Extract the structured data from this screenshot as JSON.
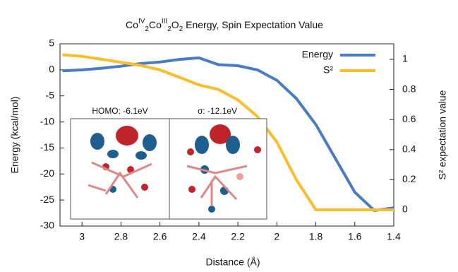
{
  "chart_data": {
    "type": "line",
    "title": [
      "Co",
      "IV",
      "2",
      "Co",
      "III",
      "2",
      "O",
      "2",
      " Energy, Spin Expectation Value"
    ],
    "x_label": "Distance (Å)",
    "y_label": "Energy (kcal/mol)",
    "y2_label": "S² expectation value",
    "x": [
      3.1,
      3.0,
      2.9,
      2.8,
      2.7,
      2.6,
      2.5,
      2.4,
      2.3,
      2.2,
      2.1,
      2.0,
      1.9,
      1.8,
      1.7,
      1.6,
      1.5,
      1.4
    ],
    "series": [
      {
        "name": "Energy",
        "color": "#4a7cc4",
        "values": [
          -0.2,
          0,
          0.3,
          0.7,
          1.2,
          1.5,
          2.0,
          2.3,
          1.0,
          0.8,
          0,
          -2,
          -5.5,
          -10.5,
          -17,
          -23.5,
          -27,
          -26.5
        ]
      },
      {
        "name": "S²",
        "color": "#fbbd2c",
        "axis": "y2",
        "values": [
          1.03,
          1.02,
          1.0,
          0.98,
          0.96,
          0.93,
          0.88,
          0.83,
          0.8,
          0.73,
          0.62,
          0.45,
          0.2,
          0,
          0,
          0,
          0,
          0
        ]
      }
    ],
    "xlim": [
      3.113,
      1.4
    ],
    "xticks": [
      3,
      2.8,
      2.6,
      2.4,
      2.2,
      2,
      1.8,
      1.6,
      1.4
    ],
    "ylim": [
      -30,
      5
    ],
    "yticks": [
      5,
      0,
      -5,
      -10,
      -15,
      -20,
      -25,
      -30
    ],
    "y2lim": [
      -0.108,
      1.103
    ],
    "y2ticks": [
      1,
      0.8,
      0.6,
      0.4,
      0.2,
      0
    ],
    "legend": "upper right",
    "insets": [
      "HOMO: -6.1eV",
      "σ: -12.1eV"
    ]
  }
}
